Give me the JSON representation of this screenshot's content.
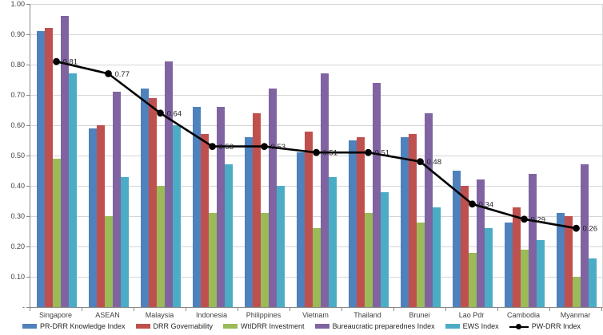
{
  "chart_data": {
    "type": "bar",
    "subtype": "grouped-bars-with-line-overlay",
    "title": "",
    "xlabel": "",
    "ylabel": "",
    "ylim": [
      0,
      1
    ],
    "grid": true,
    "legend_position": "bottom",
    "categories": [
      "Singapore",
      "ASEAN",
      "Malaysia",
      "Indonesia",
      "Philippines",
      "Vietnam",
      "Thailand",
      "Brunei",
      "Lao Pdr",
      "Cambodia",
      "Myanmar"
    ],
    "y_ticks": [
      {
        "v": 1.0,
        "label": "1.00"
      },
      {
        "v": 0.9,
        "label": "0.90"
      },
      {
        "v": 0.8,
        "label": "0.80"
      },
      {
        "v": 0.7,
        "label": "0.70"
      },
      {
        "v": 0.6,
        "label": "0.60"
      },
      {
        "v": 0.5,
        "label": "0.50"
      },
      {
        "v": 0.4,
        "label": "0.40"
      },
      {
        "v": 0.3,
        "label": "0.30"
      },
      {
        "v": 0.2,
        "label": "0.20"
      },
      {
        "v": 0.1,
        "label": "0.10"
      },
      {
        "v": 0.0,
        "label": "-"
      }
    ],
    "series": [
      {
        "name": "PR-DRR Knowledge Index",
        "type": "bar",
        "color": "#4F81BD",
        "values": [
          0.91,
          0.59,
          0.72,
          0.66,
          0.56,
          0.51,
          0.55,
          0.56,
          0.45,
          0.28,
          0.31
        ]
      },
      {
        "name": "DRR Governability",
        "type": "bar",
        "color": "#C0504D",
        "values": [
          0.92,
          0.6,
          0.69,
          0.57,
          0.64,
          0.58,
          0.56,
          0.57,
          0.4,
          0.33,
          0.3
        ]
      },
      {
        "name": "WtIDRR Investment",
        "type": "bar",
        "color": "#9BBB59",
        "values": [
          0.49,
          0.3,
          0.4,
          0.31,
          0.31,
          0.26,
          0.31,
          0.28,
          0.18,
          0.19,
          0.1
        ]
      },
      {
        "name": "Bureaucratic preparednes Index",
        "type": "bar",
        "color": "#8064A2",
        "values": [
          0.96,
          0.71,
          0.81,
          0.66,
          0.72,
          0.77,
          0.74,
          0.64,
          0.42,
          0.44,
          0.47
        ]
      },
      {
        "name": "EWS Index",
        "type": "bar",
        "color": "#4BACC6",
        "values": [
          0.77,
          0.43,
          0.6,
          0.47,
          0.4,
          0.43,
          0.38,
          0.33,
          0.26,
          0.22,
          0.16
        ]
      },
      {
        "name": "PW-DRR Index",
        "type": "line",
        "color": "#000000",
        "values": [
          0.81,
          0.77,
          0.64,
          0.53,
          0.53,
          0.51,
          0.51,
          0.48,
          0.34,
          0.29,
          0.26
        ],
        "labels": [
          "0.81",
          "0.77",
          "0.64",
          "0.53",
          "0.53",
          "0.51",
          "0.51",
          "0.48",
          "0.34",
          "0.29",
          "0.26"
        ]
      }
    ],
    "colors": {
      "gridline": "#d6d6d6",
      "axis": "#898989",
      "tick_label": "#3f3f3f",
      "data_label": "#1f1f1f",
      "background": "#ffffff"
    }
  }
}
